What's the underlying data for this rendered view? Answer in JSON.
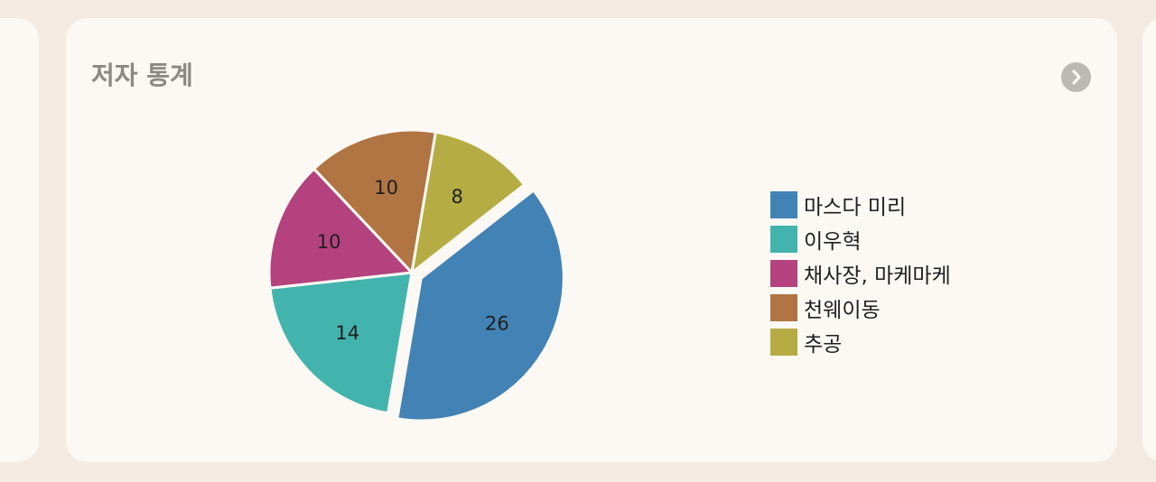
{
  "card": {
    "title": "저자 통계"
  },
  "icons": {
    "more": "chevron-right-icon",
    "prev": "chevron-right-icon"
  },
  "colors": {
    "background": "#f3ebe2",
    "card": "#fcf9f4",
    "title": "#8c8884",
    "icon_circle": "#bcb8b4"
  },
  "chart_data": {
    "type": "pie",
    "title": "",
    "categories": [
      "마스다 미리",
      "이우혁",
      "채사장, 마케마케",
      "천웨이동",
      "추공"
    ],
    "values": [
      26,
      14,
      10,
      10,
      8
    ],
    "colors": [
      "#4382b4",
      "#43b3ad",
      "#b3427f",
      "#b07543",
      "#b5ac43"
    ],
    "legend_position": "right",
    "exploded": [
      true,
      false,
      false,
      false,
      false
    ]
  }
}
